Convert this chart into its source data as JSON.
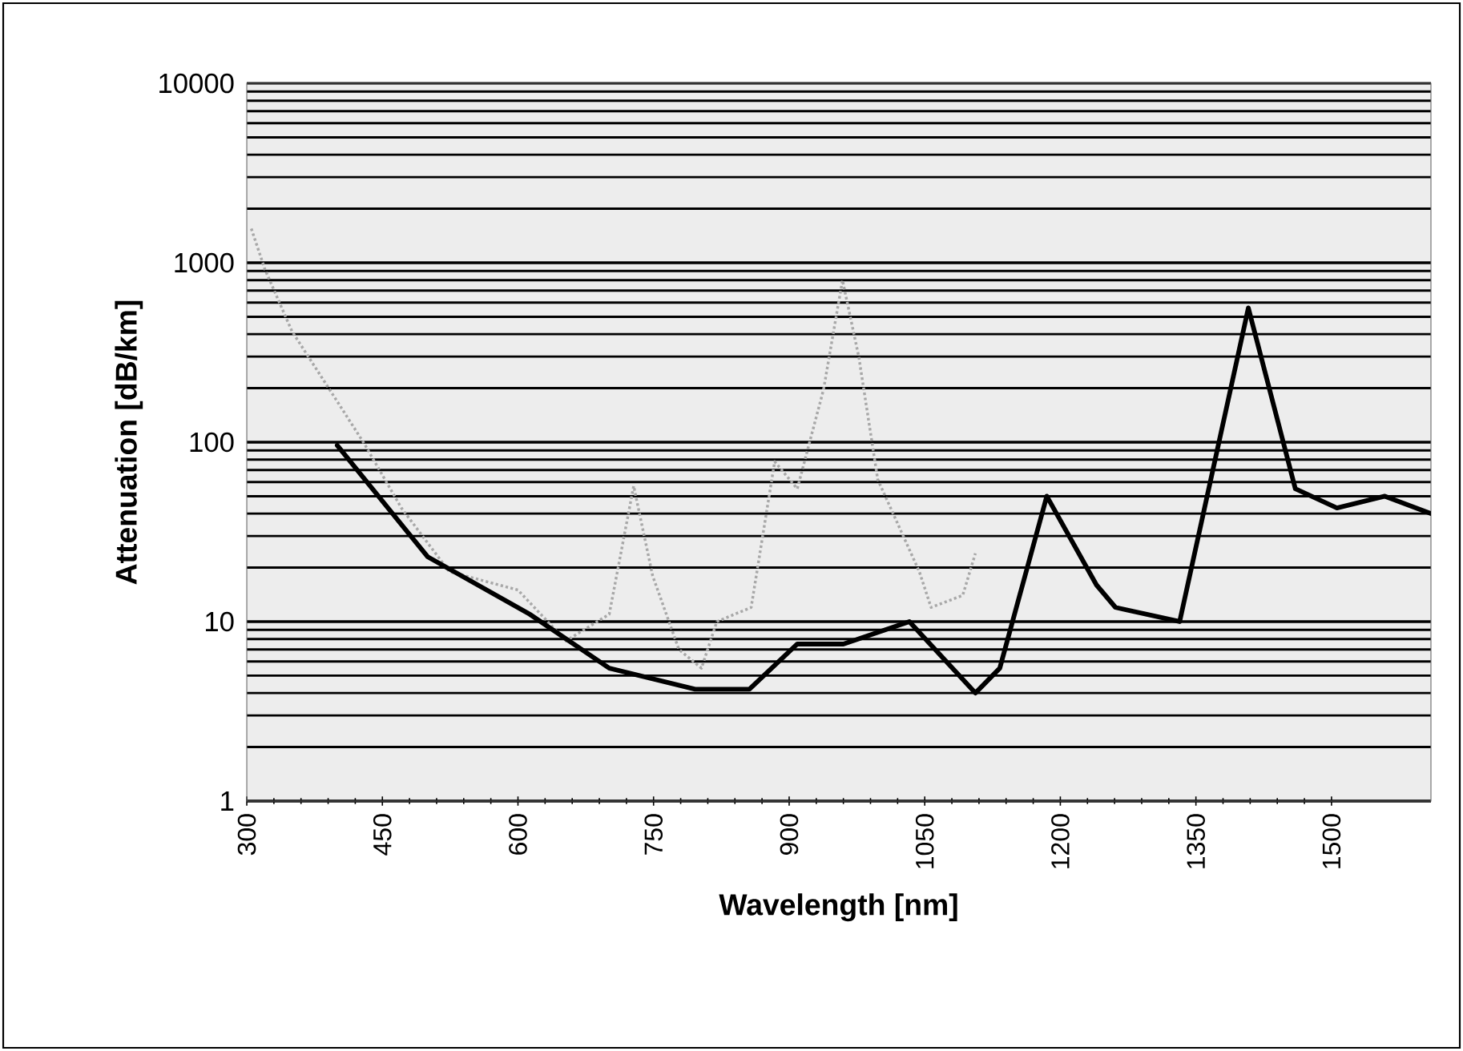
{
  "chart_data": {
    "type": "line",
    "xlabel": "Wavelength [nm]",
    "ylabel": "Attenuation [dB/km]",
    "log": "y",
    "grid": "y",
    "xlim": [
      300,
      1610
    ],
    "xticks": [
      300,
      450,
      600,
      750,
      900,
      1050,
      1200,
      1350,
      1500
    ],
    "ylim": [
      1,
      10000
    ],
    "yticks": [
      1,
      10,
      100,
      1000,
      10000
    ],
    "series": [
      {
        "color": "#a8a8a8",
        "line_style": "dotted",
        "x": [
          305,
          320,
          350,
          403,
          430,
          471,
          524,
          600,
          653,
          701,
          728,
          749,
          778,
          803,
          820,
          858,
          884,
          909,
          938,
          959,
          977,
          998,
          1044,
          1057,
          1092,
          1106
        ],
        "values": [
          1550,
          920,
          415,
          160,
          98,
          43,
          19,
          15,
          7.8,
          11,
          57,
          18,
          7,
          5.5,
          10,
          12,
          78,
          55,
          196,
          800,
          300,
          62,
          19,
          12,
          14,
          24
        ]
      },
      {
        "color": "#000000",
        "line_style": "solid",
        "x": [
          400,
          500,
          613,
          701,
          796,
          856,
          909,
          960,
          1033,
          1106,
          1133,
          1185,
          1240,
          1261,
          1332,
          1408,
          1460,
          1506,
          1559,
          1610
        ],
        "values": [
          96,
          23,
          11,
          5.5,
          4.2,
          4.2,
          7.5,
          7.5,
          10,
          4.0,
          5.5,
          50,
          16,
          12,
          10,
          560,
          55,
          43,
          50,
          40
        ]
      }
    ]
  }
}
